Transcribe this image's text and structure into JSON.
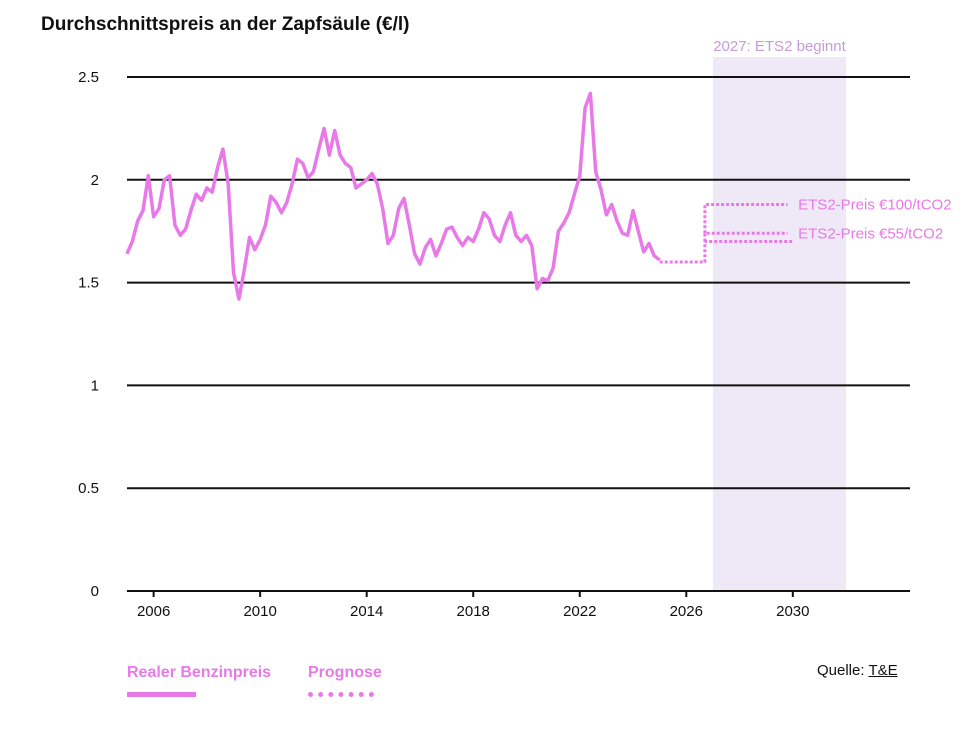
{
  "title": "Durchschnittspreis an der Zapfsäule (€/l)",
  "colors": {
    "line": "#e879e8",
    "shade": "#efe8f6",
    "shade_label": "#c79ad9",
    "grid": "#111111"
  },
  "legend": {
    "real_label": "Realer Benzinpreis",
    "forecast_label": "Prognose"
  },
  "source": {
    "prefix": "Quelle: ",
    "link": "T&E"
  },
  "chart_data": {
    "type": "line",
    "title": "Durchschnittspreis an der Zapfsäule (€/l)",
    "xlim": [
      2005.0,
      2034.4
    ],
    "ylim": [
      0,
      2.5
    ],
    "x_ticks": [
      2006,
      2010,
      2014,
      2018,
      2022,
      2026,
      2030
    ],
    "y_ticks": [
      0,
      0.5,
      1,
      1.5,
      2,
      2.5
    ],
    "y_tick_labels": [
      "0",
      "0.5",
      "1",
      "1.5",
      "2",
      "2.5"
    ],
    "grid": "horizontal",
    "legend_position": "bottom-left",
    "shaded_region": {
      "from": 2027.0,
      "to": 2032.0,
      "label": "2027: ETS2 beginnt"
    },
    "series": [
      {
        "name": "Realer Benzinpreis",
        "style": "solid",
        "x": [
          2005.0,
          2005.2,
          2005.4,
          2005.6,
          2005.8,
          2006.0,
          2006.2,
          2006.4,
          2006.6,
          2006.8,
          2007.0,
          2007.2,
          2007.4,
          2007.6,
          2007.8,
          2008.0,
          2008.2,
          2008.4,
          2008.6,
          2008.8,
          2009.0,
          2009.2,
          2009.4,
          2009.6,
          2009.8,
          2010.0,
          2010.2,
          2010.4,
          2010.6,
          2010.8,
          2011.0,
          2011.2,
          2011.4,
          2011.6,
          2011.8,
          2012.0,
          2012.2,
          2012.4,
          2012.6,
          2012.8,
          2013.0,
          2013.2,
          2013.4,
          2013.6,
          2013.8,
          2014.0,
          2014.2,
          2014.4,
          2014.6,
          2014.8,
          2015.0,
          2015.2,
          2015.4,
          2015.6,
          2015.8,
          2016.0,
          2016.2,
          2016.4,
          2016.6,
          2016.8,
          2017.0,
          2017.2,
          2017.4,
          2017.6,
          2017.8,
          2018.0,
          2018.2,
          2018.4,
          2018.6,
          2018.8,
          2019.0,
          2019.2,
          2019.4,
          2019.6,
          2019.8,
          2020.0,
          2020.2,
          2020.4,
          2020.6,
          2020.8,
          2021.0,
          2021.2,
          2021.4,
          2021.6,
          2021.8,
          2022.0,
          2022.2,
          2022.4,
          2022.6,
          2022.8,
          2023.0,
          2023.2,
          2023.4,
          2023.6,
          2023.8,
          2024.0,
          2024.2,
          2024.4,
          2024.6,
          2024.8,
          2025.0
        ],
        "y": [
          1.64,
          1.7,
          1.8,
          1.85,
          2.02,
          1.82,
          1.86,
          2.0,
          2.02,
          1.78,
          1.73,
          1.76,
          1.85,
          1.93,
          1.9,
          1.96,
          1.94,
          2.06,
          2.15,
          1.98,
          1.55,
          1.42,
          1.56,
          1.72,
          1.66,
          1.71,
          1.78,
          1.92,
          1.89,
          1.84,
          1.89,
          1.98,
          2.1,
          2.08,
          2.01,
          2.04,
          2.15,
          2.25,
          2.12,
          2.24,
          2.12,
          2.08,
          2.06,
          1.96,
          1.98,
          2.0,
          2.03,
          1.98,
          1.86,
          1.69,
          1.73,
          1.86,
          1.91,
          1.78,
          1.64,
          1.59,
          1.67,
          1.71,
          1.63,
          1.69,
          1.76,
          1.77,
          1.72,
          1.68,
          1.72,
          1.7,
          1.76,
          1.84,
          1.81,
          1.73,
          1.7,
          1.78,
          1.84,
          1.73,
          1.7,
          1.73,
          1.68,
          1.47,
          1.52,
          1.51,
          1.57,
          1.75,
          1.79,
          1.84,
          1.93,
          2.02,
          2.35,
          2.42,
          2.04,
          1.95,
          1.83,
          1.88,
          1.8,
          1.74,
          1.73,
          1.85,
          1.75,
          1.65,
          1.69,
          1.63,
          1.61
        ]
      },
      {
        "name": "Prognose",
        "style": "dotted",
        "x": [
          2025.0,
          2026.7,
          2026.7,
          2030.0
        ],
        "y": [
          1.6,
          1.6,
          1.7,
          1.7
        ]
      },
      {
        "name": "ETS2-Preis €55/tCO2",
        "style": "dotted",
        "x": [
          2026.7,
          2026.7,
          2029.8
        ],
        "y": [
          1.7,
          1.74,
          1.74
        ]
      },
      {
        "name": "ETS2-Preis €100/tCO2",
        "style": "dotted",
        "x": [
          2026.7,
          2026.7,
          2029.8
        ],
        "y": [
          1.74,
          1.88,
          1.88
        ]
      }
    ],
    "annotations": [
      "ETS2-Preis €100/tCO2",
      "ETS2-Preis €55/tCO2"
    ]
  }
}
